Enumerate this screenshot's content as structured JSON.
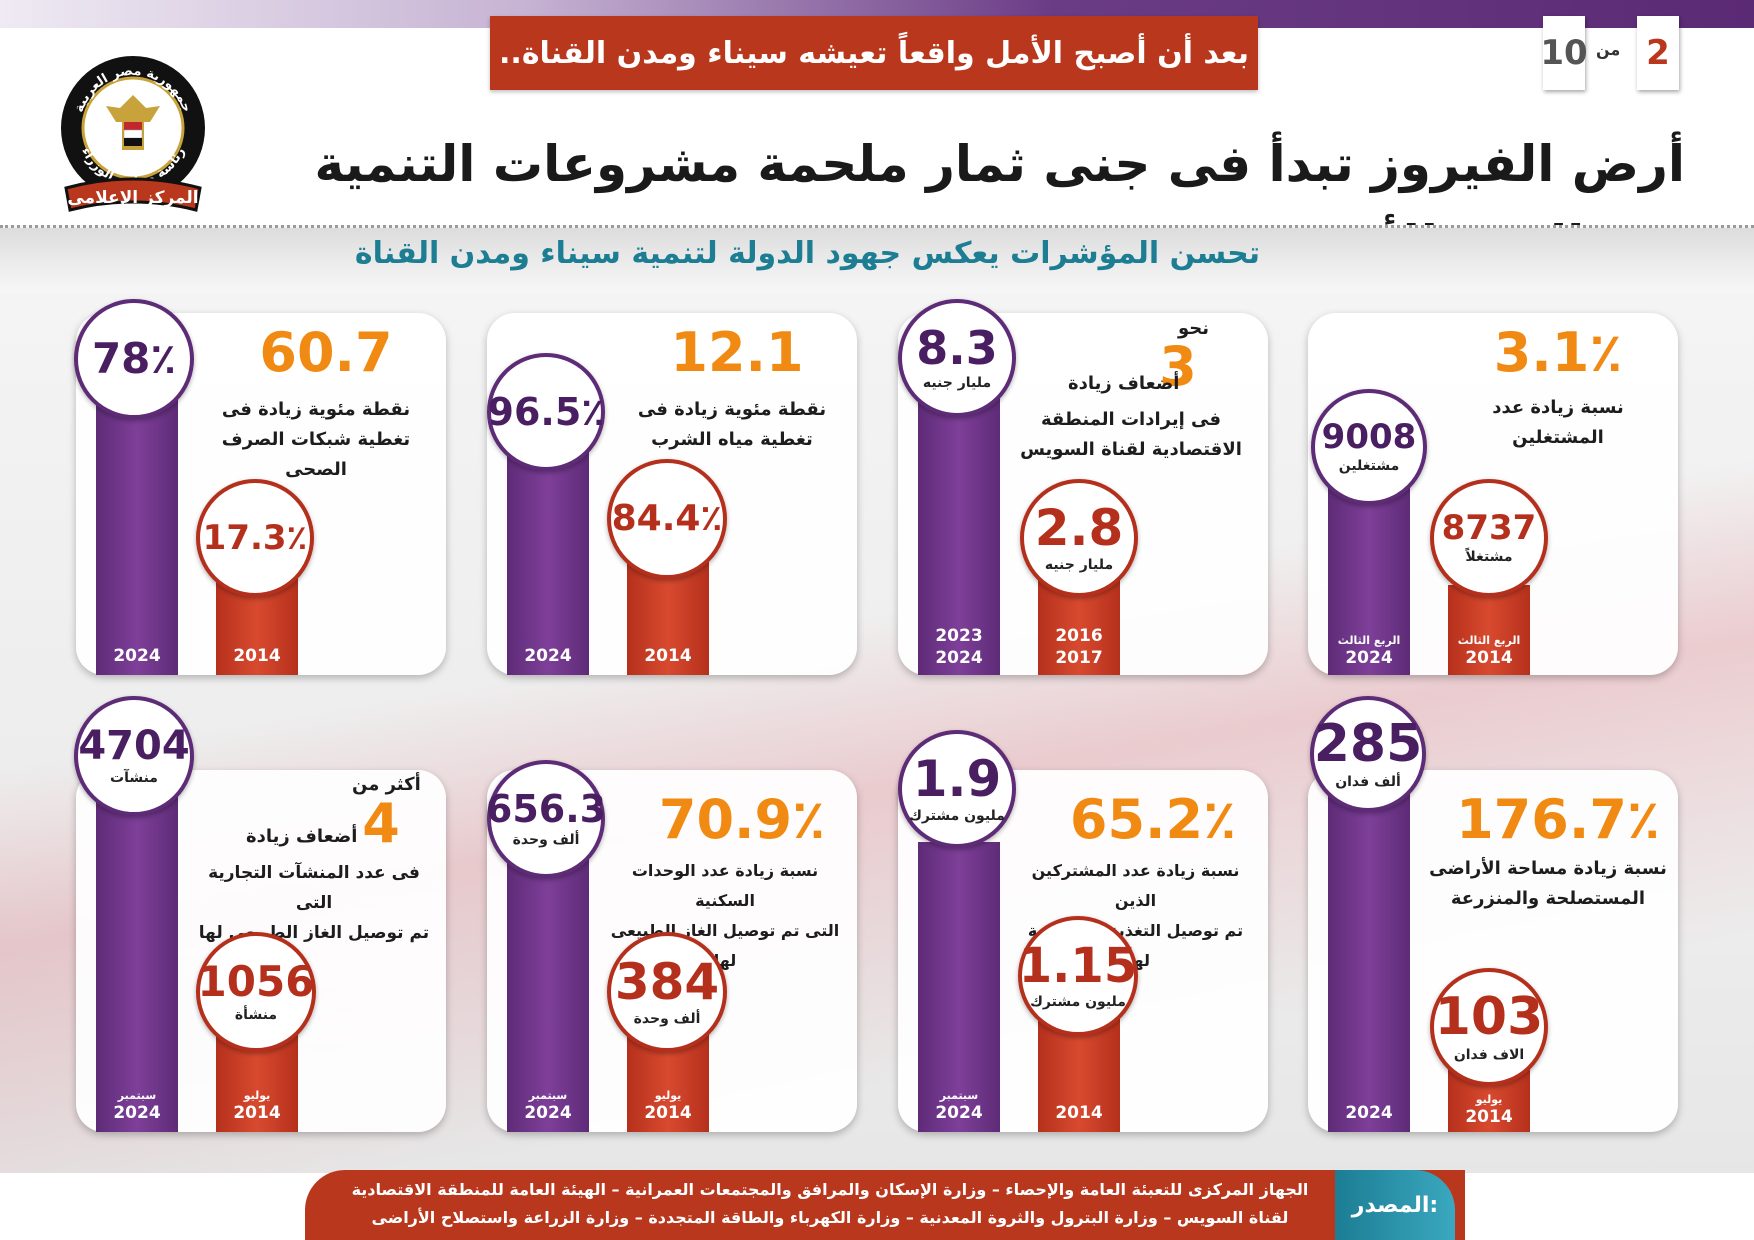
{
  "header": {
    "headline": "بعد أن أصبح الأمل واقعاً تعيشه سيناء ومدن القناة..",
    "page_current": "2",
    "page_of": "من",
    "page_total": "10",
    "title": "أرض الفيروز تبدأ فى جنى ثمار ملحمة مشروعات التنمية فى العقد الأخير",
    "subtitle": "تحسن المؤشرات يعكس جهود الدولة لتنمية سيناء ومدن القناة"
  },
  "logo": {
    "top_text": "جمهورية مصر العربية",
    "middle_text": "رئاسة مجلس الوزراء",
    "bottom_text": "المركز الإعلامى"
  },
  "cards": {
    "employees": {
      "headline": "3.1٪",
      "desc1": "نسبة زيادة عدد",
      "desc2": "المشتغلين",
      "new_value": "9008",
      "new_unit": "مشتغلين",
      "old_value": "8737",
      "old_unit": "مشتغلاً",
      "new_period": "الربع الثالث",
      "new_year": "2024",
      "old_period": "الربع الثالث",
      "old_year": "2014"
    },
    "suez": {
      "prefix": "نحو",
      "headline": "3",
      "desc1": "أضعاف زيادة",
      "desc2": "فى إيرادات المنطقة",
      "desc3": "الاقتصادية لقناة السويس",
      "new_value": "8.3",
      "new_unit": "مليار جنيه",
      "old_value": "2.8",
      "old_unit": "مليار جنيه",
      "new_year1": "2023",
      "new_year2": "2024",
      "old_year1": "2016",
      "old_year2": "2017"
    },
    "water": {
      "headline": "12.1",
      "desc1": "نقطة مئوية زيادة فى",
      "desc2": "تغطية مياه الشرب",
      "new_value": "96.5٪",
      "old_value": "84.4٪",
      "new_year": "2024",
      "old_year": "2014"
    },
    "sewage": {
      "headline": "60.7",
      "desc1": "نقطة مئوية زيادة فى",
      "desc2": "تغطية شبكات الصرف الصحى",
      "new_value": "78٪",
      "old_value": "17.3٪",
      "new_year": "2024",
      "old_year": "2014"
    },
    "land": {
      "headline": "176.7٪",
      "desc1": "نسبة زيادة مساحة الأراضى",
      "desc2": "المستصلحة والمنزرعة",
      "new_value": "285",
      "new_unit": "ألف فدان",
      "old_value": "103",
      "old_unit": "الاف فدان",
      "new_year": "2024",
      "old_month": "يوليو",
      "old_year": "2014"
    },
    "electricity": {
      "headline": "65.2٪",
      "desc1": "نسبة زيادة عدد المشتركين الذين",
      "desc2": "تم توصيل التغذية الكهربائية لهم",
      "new_value": "1.9",
      "new_unit": "مليون مشترك",
      "old_value": "1.15",
      "old_unit": "مليون مشترك",
      "new_month": "سبتمبر",
      "new_year": "2024",
      "old_year": "2014"
    },
    "gas_units": {
      "headline": "70.9٪",
      "desc1": "نسبة زيادة عدد الوحدات السكنية",
      "desc2": "التى تم توصيل الغاز الطبيعى لها",
      "new_value": "656.3",
      "new_unit": "ألف وحدة",
      "old_value": "384",
      "old_unit": "ألف وحدة",
      "new_month": "سبتمبر",
      "new_year": "2024",
      "old_month": "يوليو",
      "old_year": "2014"
    },
    "commercial": {
      "prefix": "أكثر من",
      "headline": "4",
      "desc1": "أضعاف زيادة",
      "desc2": "فى عدد المنشآت التجارية التى",
      "desc3": "تم توصيل الغاز الطبيعى لها",
      "new_value": "4704",
      "new_unit": "منشآت",
      "old_value": "1056",
      "old_unit": "منشأة",
      "new_month": "سبتمبر",
      "new_year": "2024",
      "old_month": "يوليو",
      "old_year": "2014"
    }
  },
  "footer": {
    "label": "المصدر:",
    "line1": "الجهاز المركزى للتعبئة العامة والإحصاء – وزارة الإسكان والمرافق والمجتمعات العمرانية – الهيئة العامة للمنطقة الاقتصادية",
    "line2": "لقناة السويس – وزارة البترول والثروة المعدنية – وزارة الكهرباء والطاقة المتجددة – وزارة الزراعة واستصلاح الأراضى"
  }
}
